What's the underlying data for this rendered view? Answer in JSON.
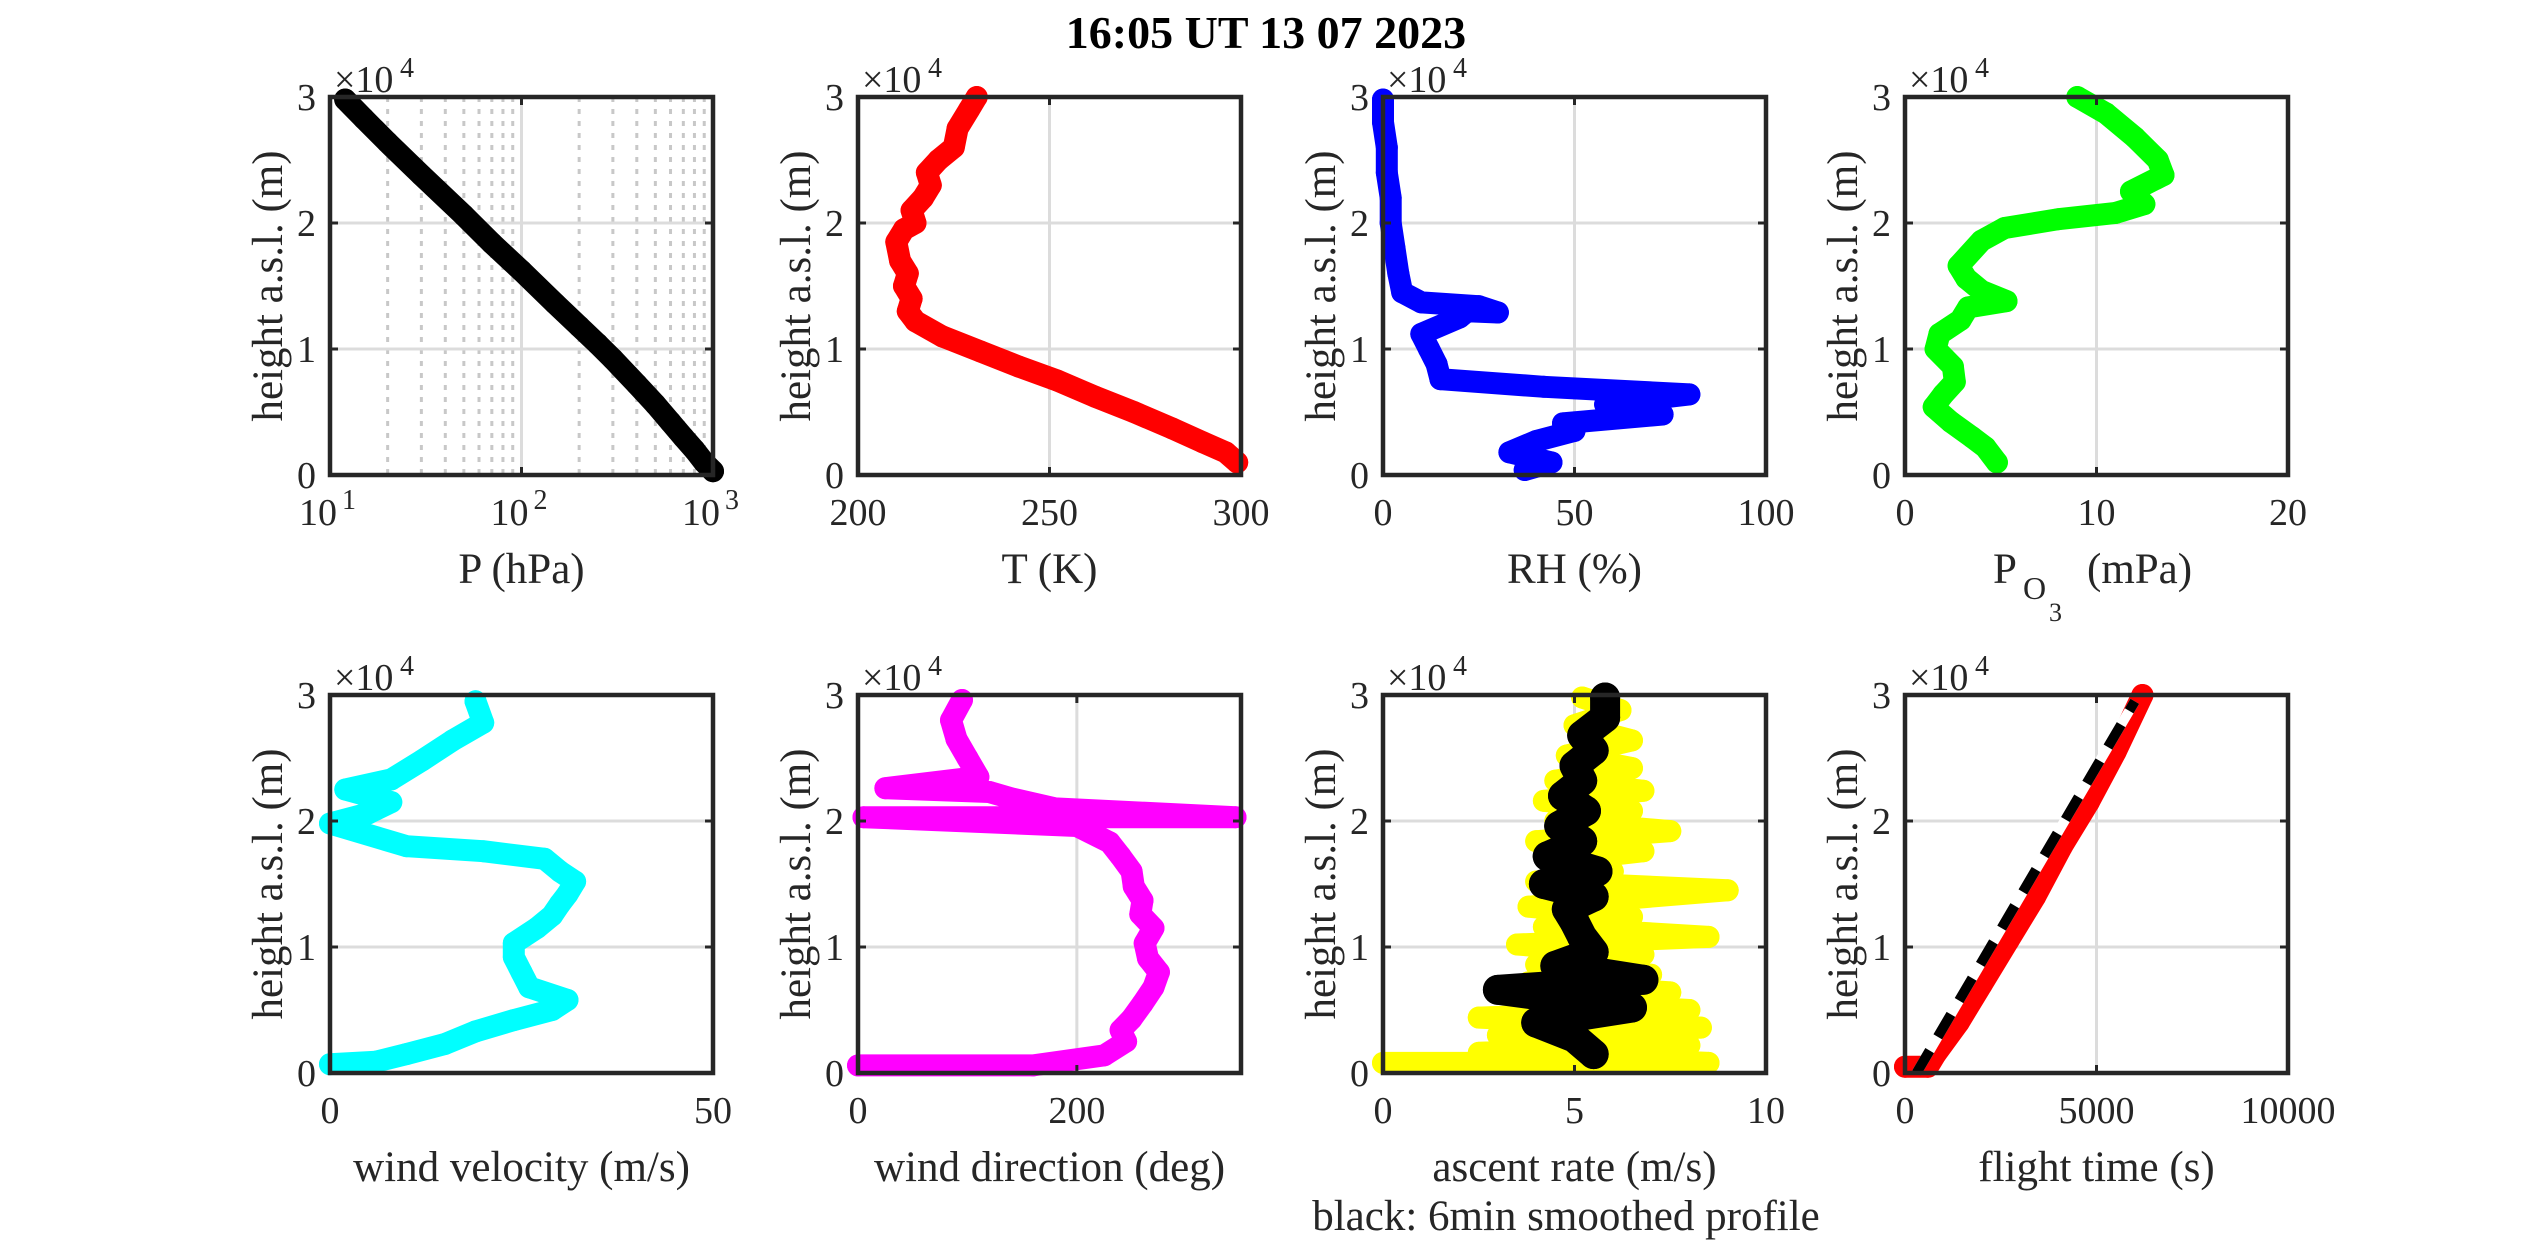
{
  "title": "16:05 UT  13 07 2023",
  "footnote": "black: 6min smoothed profile",
  "colors": {
    "pressure": "#000000",
    "temperature": "#ff0000",
    "humidity": "#0000ff",
    "ozone": "#00ff00",
    "wind_velocity": "#00ffff",
    "wind_direction": "#ff00ff",
    "ascent_raw": "#ffff00",
    "ascent_smooth": "#000000",
    "flight_raw": "#ff0000",
    "flight_dash": "#000000"
  },
  "chart_data": [
    {
      "type": "scatter",
      "id": "pressure",
      "xlabel": "P (hPa)",
      "ylabel": "height a.s.l. (m)",
      "y_exponent_label": "×10",
      "y_exponent": "4",
      "xscale": "log",
      "xlim": [
        10,
        1000
      ],
      "ylim": [
        0,
        30000
      ],
      "xticks": [
        10,
        100,
        1000
      ],
      "xtick_labels": [
        {
          "base": "10",
          "exp": "1"
        },
        {
          "base": "10",
          "exp": "2"
        },
        {
          "base": "10",
          "exp": "3"
        }
      ],
      "yticks": [
        0,
        10000,
        20000,
        30000
      ],
      "ytick_labels": [
        "0",
        "1",
        "2",
        "3"
      ],
      "grid": true,
      "series": [
        {
          "color": "#000000",
          "x": [
            1000,
            900,
            800,
            700,
            600,
            500,
            400,
            300,
            250,
            200,
            150,
            100,
            70,
            50,
            30,
            20,
            15,
            12
          ],
          "y": [
            300,
            1000,
            2000,
            3000,
            4200,
            5600,
            7200,
            9200,
            10400,
            11800,
            13600,
            16200,
            18400,
            20600,
            23800,
            26400,
            28300,
            29800
          ]
        }
      ]
    },
    {
      "type": "scatter",
      "id": "temperature",
      "xlabel": "T (K)",
      "ylabel": "height a.s.l. (m)",
      "y_exponent_label": "×10",
      "y_exponent": "4",
      "xlim": [
        200,
        300
      ],
      "ylim": [
        0,
        30000
      ],
      "xticks": [
        200,
        250,
        300
      ],
      "xtick_labels": [
        "200",
        "250",
        "300"
      ],
      "yticks": [
        0,
        10000,
        20000,
        30000
      ],
      "ytick_labels": [
        "0",
        "1",
        "2",
        "3"
      ],
      "grid": true,
      "series": [
        {
          "color": "#ff0000",
          "x": [
            299,
            296,
            290,
            282,
            272,
            262,
            252,
            242,
            232,
            222,
            215,
            213,
            214,
            212,
            213,
            211,
            210,
            212,
            215,
            214,
            217,
            219,
            218,
            221,
            225,
            226,
            229,
            231
          ],
          "y": [
            1000,
            1800,
            2600,
            3700,
            5000,
            6200,
            7500,
            8600,
            9800,
            11000,
            12200,
            13000,
            14000,
            15000,
            16000,
            17000,
            18500,
            19500,
            20000,
            21000,
            22000,
            23000,
            24000,
            25000,
            26000,
            27500,
            29000,
            30000
          ]
        }
      ]
    },
    {
      "type": "scatter",
      "id": "humidity",
      "xlabel": "RH (%)",
      "ylabel": "height a.s.l. (m)",
      "y_exponent_label": "×10",
      "y_exponent": "4",
      "xlim": [
        0,
        100
      ],
      "ylim": [
        0,
        30000
      ],
      "xticks": [
        0,
        50,
        100
      ],
      "xtick_labels": [
        "0",
        "50",
        "100"
      ],
      "yticks": [
        0,
        10000,
        20000,
        30000
      ],
      "ytick_labels": [
        "0",
        "1",
        "2",
        "3"
      ],
      "grid": true,
      "series": [
        {
          "color": "#0000ff",
          "x": [
            37,
            44,
            33,
            40,
            50,
            47,
            73,
            58,
            80,
            42,
            15,
            14,
            12,
            10,
            20,
            22,
            30,
            25,
            10,
            5,
            4,
            3,
            2,
            2,
            1,
            1,
            0,
            0
          ],
          "y": [
            400,
            1000,
            1800,
            2700,
            3500,
            4100,
            4800,
            5600,
            6400,
            7000,
            7600,
            8800,
            10000,
            11200,
            12500,
            13000,
            12900,
            13400,
            13700,
            14500,
            16000,
            18000,
            20000,
            22000,
            24000,
            26000,
            28000,
            29800
          ]
        }
      ]
    },
    {
      "type": "scatter",
      "id": "ozone",
      "xlabel": "P",
      "xlabel_subscript": "O",
      "xlabel_subsubscript": "3",
      "xlabel_unit": "(mPa)",
      "ylabel": "height a.s.l. (m)",
      "y_exponent_label": "×10",
      "y_exponent": "4",
      "xlim": [
        0,
        20
      ],
      "ylim": [
        0,
        30000
      ],
      "xticks": [
        0,
        10,
        20
      ],
      "xtick_labels": [
        "0",
        "10",
        "20"
      ],
      "yticks": [
        0,
        10000,
        20000,
        30000
      ],
      "ytick_labels": [
        "0",
        "1",
        "2",
        "3"
      ],
      "grid": true,
      "series": [
        {
          "color": "#00ff00",
          "x": [
            4.8,
            4.2,
            3.5,
            2.4,
            1.5,
            2.0,
            2.6,
            2.5,
            1.6,
            1.8,
            2.9,
            3.3,
            5.3,
            4.0,
            3.2,
            2.8,
            4.0,
            5.2,
            8.0,
            11.0,
            12.5,
            11.8,
            13.5,
            13.2,
            12.0,
            10.5,
            9.0
          ],
          "y": [
            1000,
            2200,
            3000,
            4200,
            5400,
            6400,
            7400,
            8600,
            10000,
            11200,
            12300,
            13300,
            13800,
            14600,
            15600,
            16600,
            18600,
            19600,
            20300,
            20800,
            21500,
            22500,
            23800,
            25000,
            26800,
            28700,
            30000
          ]
        }
      ]
    },
    {
      "type": "scatter",
      "id": "wind_velocity",
      "xlabel": "wind velocity (m/s)",
      "ylabel": "height a.s.l. (m)",
      "y_exponent_label": "×10",
      "y_exponent": "4",
      "xlim": [
        0,
        50
      ],
      "ylim": [
        0,
        30000
      ],
      "xticks": [
        0,
        50
      ],
      "xtick_labels": [
        "0",
        "50"
      ],
      "yticks": [
        0,
        10000,
        20000,
        30000
      ],
      "ytick_labels": [
        "0",
        "1",
        "2",
        "3"
      ],
      "grid": true,
      "series": [
        {
          "color": "#00ffff",
          "x": [
            0,
            6,
            10,
            15,
            19,
            24,
            29,
            31,
            26,
            25,
            24,
            24,
            27,
            29,
            30,
            31,
            32,
            30,
            28,
            20,
            10,
            0,
            5,
            8,
            2,
            8,
            12,
            16,
            20,
            19
          ],
          "y": [
            700,
            900,
            1500,
            2300,
            3300,
            4200,
            5000,
            5800,
            6800,
            8000,
            9200,
            10300,
            11500,
            12500,
            13400,
            14200,
            15200,
            16000,
            17000,
            17600,
            18000,
            19800,
            20600,
            21500,
            22500,
            23300,
            24800,
            26400,
            27800,
            29500
          ]
        }
      ]
    },
    {
      "type": "scatter",
      "id": "wind_direction",
      "xlabel": "wind direction (deg)",
      "ylabel": "height a.s.l. (m)",
      "y_exponent_label": "×10",
      "y_exponent": "4",
      "xlim": [
        0,
        350
      ],
      "ylim": [
        0,
        30000
      ],
      "xticks": [
        0,
        200
      ],
      "xtick_labels": [
        "0",
        "200"
      ],
      "yticks": [
        0,
        10000,
        20000,
        30000
      ],
      "ytick_labels": [
        "0",
        "1",
        "2",
        "3"
      ],
      "grid": true,
      "series": [
        {
          "color": "#ff00ff",
          "x": [
            0,
            160,
            225,
            245,
            240,
            250,
            260,
            270,
            275,
            265,
            262,
            270,
            258,
            260,
            252,
            250,
            240,
            230,
            200,
            5,
            345,
            180,
            140,
            120,
            25,
            110,
            100,
            90,
            85,
            95
          ],
          "y": [
            600,
            600,
            1400,
            2500,
            3400,
            4300,
            5500,
            6800,
            8000,
            9100,
            10300,
            11500,
            12600,
            13700,
            14800,
            16000,
            17200,
            18300,
            19600,
            20300,
            20300,
            21000,
            21800,
            22300,
            22600,
            23500,
            25000,
            26500,
            28000,
            29600
          ]
        }
      ]
    },
    {
      "type": "scatter",
      "id": "ascent_rate",
      "xlabel": "ascent rate (m/s)",
      "ylabel": "height a.s.l. (m)",
      "y_exponent_label": "×10",
      "y_exponent": "4",
      "xlim": [
        0,
        10
      ],
      "ylim": [
        0,
        30000
      ],
      "xticks": [
        0,
        5,
        10
      ],
      "xtick_labels": [
        "0",
        "5",
        "10"
      ],
      "yticks": [
        0,
        10000,
        20000,
        30000
      ],
      "ytick_labels": [
        "0",
        "1",
        "2",
        "3"
      ],
      "grid": true,
      "series": [
        {
          "name": "raw",
          "color": "#ffff00",
          "x": [
            0,
            8.5,
            2.5,
            8.0,
            3.0,
            8.3,
            2.5,
            8.0,
            3.5,
            7.5,
            3.8,
            7.0,
            4.0,
            6.8,
            3.5,
            8.5,
            4.2,
            6.5,
            3.8,
            9.0,
            4.0,
            6.0,
            4.5,
            6.8,
            4.0,
            7.5,
            4.5,
            6.5,
            4.2,
            6.8,
            4.5,
            6.5,
            4.8,
            6.5,
            5.0,
            6.2,
            5.2
          ],
          "y": [
            800,
            800,
            1600,
            2200,
            3000,
            3600,
            4400,
            5000,
            5800,
            6400,
            7200,
            7800,
            8600,
            9400,
            10200,
            10800,
            11600,
            12400,
            13200,
            14500,
            15200,
            16000,
            16800,
            17600,
            18400,
            19200,
            20000,
            20800,
            21600,
            22400,
            23200,
            24200,
            25200,
            26400,
            27600,
            28800,
            29800
          ]
        },
        {
          "name": "smoothed",
          "color": "#000000",
          "x": [
            5.5,
            5.0,
            4.0,
            6.5,
            3.0,
            6.8,
            4.5,
            5.5,
            5.2,
            5.0,
            4.8,
            5.5,
            4.2,
            5.6,
            4.3,
            5.2,
            4.6,
            5.3,
            4.7,
            5.2,
            5.0,
            5.5,
            5.2,
            5.8,
            5.8
          ],
          "y": [
            1500,
            2800,
            4000,
            5200,
            6600,
            7400,
            8500,
            9600,
            10800,
            12000,
            13000,
            14000,
            15000,
            16000,
            17200,
            18400,
            19600,
            20800,
            22000,
            23200,
            24400,
            25600,
            26800,
            28200,
            29800
          ]
        }
      ]
    },
    {
      "type": "scatter",
      "id": "flight_time",
      "xlabel": "flight time (s)",
      "ylabel": "height a.s.l. (m)",
      "y_exponent_label": "×10",
      "y_exponent": "4",
      "xlim": [
        0,
        10000
      ],
      "ylim": [
        0,
        30000
      ],
      "xticks": [
        0,
        5000,
        10000
      ],
      "xtick_labels": [
        "0",
        "5000",
        "10000"
      ],
      "yticks": [
        0,
        10000,
        20000,
        30000
      ],
      "ytick_labels": [
        "0",
        "1",
        "2",
        "3"
      ],
      "grid": true,
      "series": [
        {
          "name": "raw",
          "color": "#ff0000",
          "x": [
            0,
            600,
            800,
            1400,
            2000,
            2700,
            3400,
            4100,
            4800,
            5500,
            6200
          ],
          "y": [
            500,
            500,
            1500,
            4000,
            7000,
            10500,
            14000,
            18000,
            21500,
            25500,
            30000
          ]
        },
        {
          "name": "line",
          "color": "#000000",
          "x": [
            300,
            6000
          ],
          "y": [
            0,
            29500
          ]
        }
      ]
    }
  ]
}
